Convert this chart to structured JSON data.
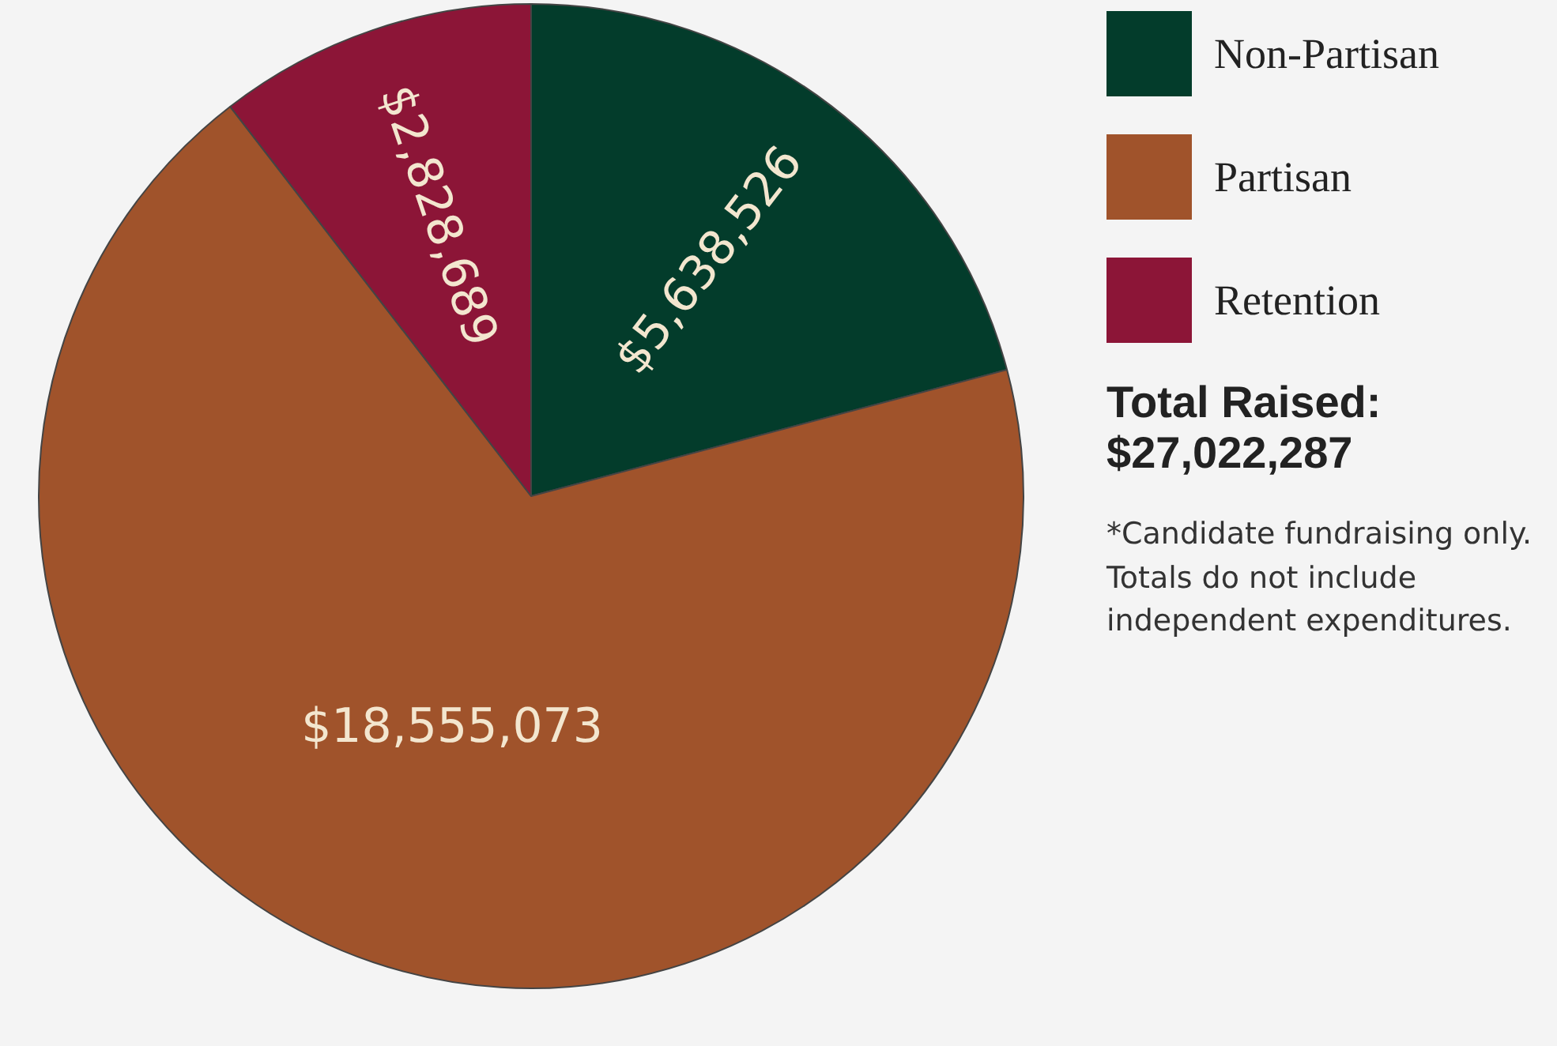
{
  "chart_data": {
    "type": "pie",
    "categories": [
      "Non-Partisan",
      "Partisan",
      "Retention"
    ],
    "values": [
      5638526,
      18555073,
      2828689
    ],
    "colors": [
      "#033c2b",
      "#a0532b",
      "#8c1537"
    ],
    "value_labels": [
      "$5,638,526",
      "$18,555,073",
      "$2,828,689"
    ],
    "legend": "top right",
    "annotations": [
      "Total Raised:\n$27,022,287",
      "*Candidate fundraising only. Totals do not include independent expenditures."
    ]
  }
}
